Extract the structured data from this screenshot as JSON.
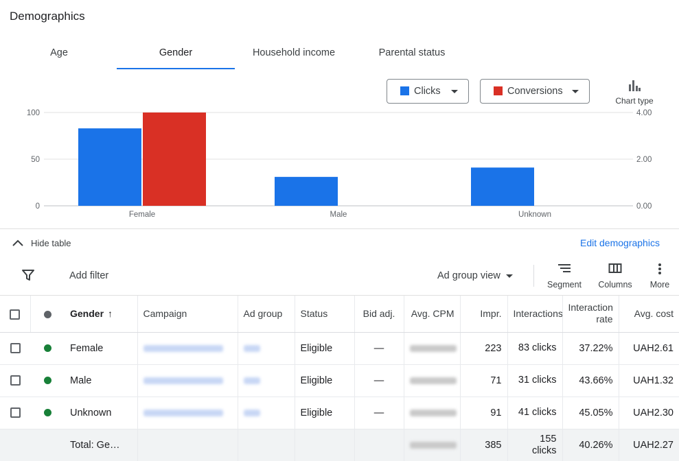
{
  "page": {
    "title": "Demographics"
  },
  "tabs": [
    {
      "label": "Age",
      "active": false
    },
    {
      "label": "Gender",
      "active": true
    },
    {
      "label": "Household income",
      "active": false
    },
    {
      "label": "Parental status",
      "active": false
    }
  ],
  "metric_selectors": [
    {
      "label": "Clicks",
      "color": "#1a73e8"
    },
    {
      "label": "Conversions",
      "color": "#d93025"
    }
  ],
  "chart_type": {
    "label": "Chart type",
    "icon": "bar-chart-icon"
  },
  "chart_data": {
    "type": "bar",
    "categories": [
      "Female",
      "Male",
      "Unknown"
    ],
    "series": [
      {
        "name": "Clicks",
        "values": [
          83,
          31,
          41
        ],
        "axis": "left",
        "color": "#1a73e8"
      },
      {
        "name": "Conversions",
        "values": [
          4,
          0,
          0
        ],
        "axis": "right",
        "color": "#d93025"
      }
    ],
    "y_left": {
      "ticks": [
        "100",
        "50",
        "0"
      ],
      "range": [
        0,
        100
      ]
    },
    "y_right": {
      "ticks": [
        "4.00",
        "2.00",
        "0.00"
      ],
      "range": [
        0,
        4
      ]
    },
    "grid": true
  },
  "table_toggle": {
    "label": "Hide table",
    "icon": "chevron-up-icon"
  },
  "edit_demographics": "Edit demographics",
  "toolbar": {
    "filter_icon": "filter-icon",
    "add_filter": "Add filter",
    "view_select": "Ad group view",
    "segment": "Segment",
    "columns": "Columns",
    "more": "More"
  },
  "table": {
    "headers": {
      "gender": "Gender",
      "campaign": "Campaign",
      "ad_group": "Ad group",
      "status": "Status",
      "bid_adj": "Bid adj.",
      "avg_cpm": "Avg. CPM",
      "impr": "Impr.",
      "interactions": "Interactions",
      "interaction_rate": "Interaction rate",
      "avg_cost": "Avg. cost"
    },
    "rows": [
      {
        "gender": "Female",
        "status": "Eligible",
        "bid_adj": "—",
        "impr": "223",
        "interactions": "83 clicks",
        "interaction_rate": "37.22%",
        "avg_cost": "UAH2.61"
      },
      {
        "gender": "Male",
        "status": "Eligible",
        "bid_adj": "—",
        "impr": "71",
        "interactions": "31 clicks",
        "interaction_rate": "43.66%",
        "avg_cost": "UAH1.32"
      },
      {
        "gender": "Unknown",
        "status": "Eligible",
        "bid_adj": "—",
        "impr": "91",
        "interactions": "41 clicks",
        "interaction_rate": "45.05%",
        "avg_cost": "UAH2.30"
      }
    ],
    "total": {
      "label": "Total: Ge…",
      "impr": "385",
      "interactions": "155 clicks",
      "interaction_rate": "40.26%",
      "avg_cost": "UAH2.27"
    },
    "status_color": "#188038"
  }
}
